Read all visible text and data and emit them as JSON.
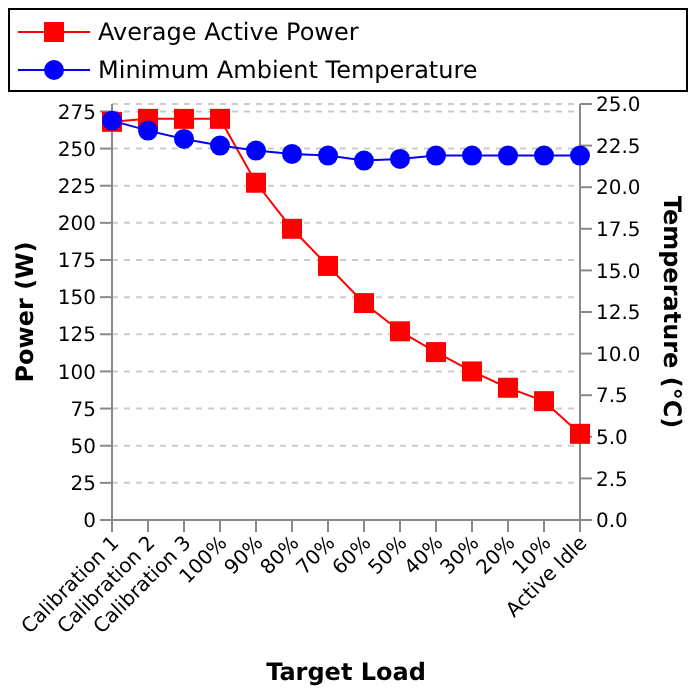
{
  "chart_data": {
    "type": "line",
    "xlabel": "Target Load",
    "ylabel": "Power (W)",
    "y2label": "Temperature  (°C)",
    "categories": [
      "Calibration 1",
      "Calibration 2",
      "Calibration 3",
      "100%",
      "90%",
      "80%",
      "70%",
      "60%",
      "50%",
      "40%",
      "30%",
      "20%",
      "10%",
      "Active Idle"
    ],
    "series": [
      {
        "name": "Average Active Power",
        "color": "#ff0000",
        "marker": "square",
        "values": [
          268,
          270,
          270,
          270,
          227,
          196,
          171,
          146,
          127,
          113,
          100,
          89,
          80,
          58
        ]
      },
      {
        "name": "Minimum Ambient Temperature",
        "color": "#0000ff",
        "marker": "circle",
        "axis": "y2",
        "values": [
          24.0,
          23.4,
          22.9,
          22.5,
          22.2,
          22.0,
          21.9,
          21.6,
          21.7,
          21.9,
          21.9,
          21.9,
          21.9,
          21.9
        ]
      }
    ],
    "ylim": [
      0,
      280
    ],
    "yticks": [
      0,
      25,
      50,
      75,
      100,
      125,
      150,
      175,
      200,
      225,
      250,
      275
    ],
    "y2lim": [
      0,
      25
    ],
    "y2ticks": [
      {
        "value": 0,
        "label": "0.0"
      },
      {
        "value": 2.5,
        "label": "2.5"
      },
      {
        "value": 5,
        "label": "5.0"
      },
      {
        "value": 7.5,
        "label": "7.5"
      },
      {
        "value": 10,
        "label": "10.0"
      },
      {
        "value": 12.5,
        "label": "12.5"
      },
      {
        "value": 15,
        "label": "15.0"
      },
      {
        "value": 17.5,
        "label": "17.5"
      },
      {
        "value": 20,
        "label": "20.0"
      },
      {
        "value": 22.5,
        "label": "22.5"
      },
      {
        "value": 25,
        "label": "25.0"
      }
    ],
    "grid": "y",
    "legend": "top",
    "line_style": "solid"
  }
}
